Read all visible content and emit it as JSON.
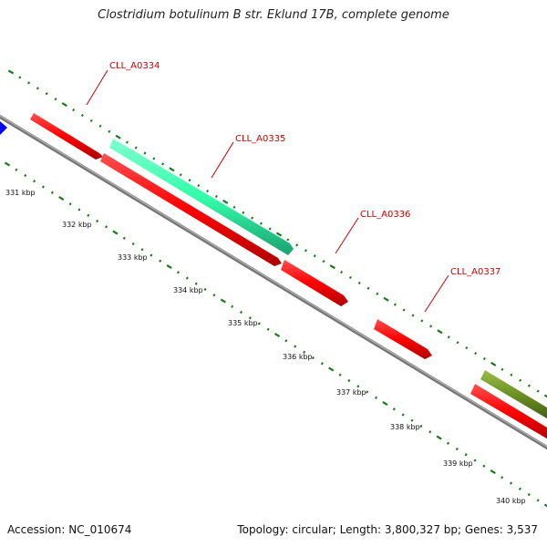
{
  "title": "Clostridium botulinum B str. Eklund 17B, complete genome",
  "footer": {
    "accession": "Accession: NC_010674",
    "summary": "Topology: circular; Length: 3,800,327 bp; Genes: 3,537"
  },
  "genes": [
    {
      "label": "CLL_A0334"
    },
    {
      "label": "CLL_A0335"
    },
    {
      "label": "CLL_A0336"
    },
    {
      "label": "CLL_A0337"
    }
  ],
  "kbp_ticks": [
    "331 kbp",
    "332 kbp",
    "333 kbp",
    "334 kbp",
    "335 kbp",
    "336 kbp",
    "337 kbp",
    "338 kbp",
    "339 kbp",
    "340 kbp"
  ],
  "colors": {
    "forward_gene": "#ff0000",
    "highlight_gene": "#33ffaa",
    "olive_gene": "#6b8e23",
    "blue_gene": "#0000ff",
    "backbone": "#888888",
    "ticks": "#1a7a1a",
    "label": "#cc0000"
  }
}
